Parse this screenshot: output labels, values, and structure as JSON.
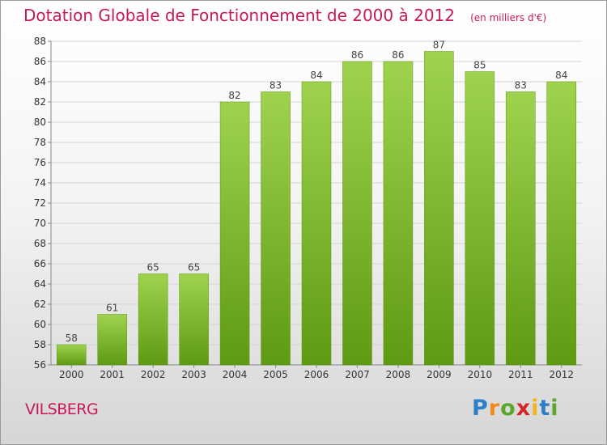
{
  "chart_data": {
    "type": "bar",
    "title": "Dotation Globale de Fonctionnement de 2000 à 2012",
    "subtitle": "(en milliers d'€)",
    "categories": [
      "2000",
      "2001",
      "2002",
      "2003",
      "2004",
      "2005",
      "2006",
      "2007",
      "2008",
      "2009",
      "2010",
      "2011",
      "2012"
    ],
    "values": [
      58,
      61,
      65,
      65,
      82,
      83,
      84,
      86,
      86,
      87,
      85,
      83,
      84
    ],
    "ylim": [
      56,
      88
    ],
    "yticks": [
      56,
      58,
      60,
      62,
      64,
      66,
      68,
      70,
      72,
      74,
      76,
      78,
      80,
      82,
      84,
      86,
      88
    ],
    "grid": true,
    "bar_color": "#7cbc2e",
    "data_labels": true
  },
  "footer": {
    "place": "VILSBERG",
    "logo_text": "Proxiti"
  },
  "colors": {
    "title": "#c8185a",
    "bar_light": "#9fd34e",
    "bar_dark": "#5e9a12",
    "grid": "#d4d4d4"
  }
}
